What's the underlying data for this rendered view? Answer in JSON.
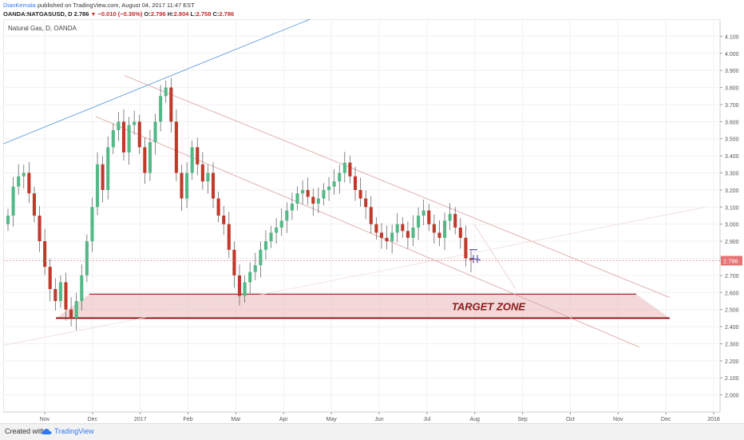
{
  "header": {
    "author": "DianKemala",
    "published_text": " published on TradingView.com, August 04, 2017 11:47 EST",
    "symbol": "OANDA:NATGASUSD, D",
    "last": "2.786",
    "change": "−0.010 (−0.36%)",
    "ohlc": {
      "o_label": "O:",
      "o": "2.796",
      "h_label": "H:",
      "h": "2.804",
      "l_label": "L:",
      "l": "2.758",
      "c_label": "C:",
      "c": "2.786"
    }
  },
  "chart_data": {
    "type": "candlestick",
    "title": "Natural Gas, D, OANDA",
    "ylim": [
      1.9,
      4.2
    ],
    "y_ticks": [
      "4.100",
      "4.000",
      "3.900",
      "3.800",
      "3.700",
      "3.600",
      "3.500",
      "3.400",
      "3.300",
      "3.200",
      "3.100",
      "3.000",
      "2.900",
      "2.800",
      "2.700",
      "2.600",
      "2.500",
      "2.400",
      "2.300",
      "2.200",
      "2.100",
      "2.000"
    ],
    "x_ticks": [
      "Nov",
      "Dec",
      "2017",
      "Feb",
      "Mar",
      "Apr",
      "May",
      "Jun",
      "Jul",
      "Aug",
      "Sep",
      "Oct",
      "Nov",
      "Dec",
      "2018"
    ],
    "last_price_label": "2.786",
    "last_price_color": "#e57373",
    "up_color": "#53b987",
    "down_color": "#c0392b",
    "target_zone": {
      "label": "TARGET ZONE",
      "top": 2.59,
      "bottom": 2.45
    },
    "candles_close": [
      3.05,
      3.22,
      3.28,
      3.3,
      3.18,
      3.05,
      2.9,
      2.75,
      2.62,
      2.55,
      2.66,
      2.5,
      2.45,
      2.55,
      2.7,
      2.9,
      3.1,
      3.35,
      3.2,
      3.45,
      3.55,
      3.6,
      3.42,
      3.58,
      3.6,
      3.45,
      3.3,
      3.48,
      3.6,
      3.75,
      3.8,
      3.6,
      3.3,
      3.15,
      3.3,
      3.45,
      3.35,
      3.25,
      3.3,
      3.15,
      3.05,
      3.0,
      2.85,
      2.7,
      2.58,
      2.66,
      2.72,
      2.76,
      2.85,
      2.9,
      2.95,
      2.98,
      3.02,
      3.08,
      3.12,
      3.18,
      3.2,
      3.16,
      3.12,
      3.15,
      3.2,
      3.22,
      3.25,
      3.3,
      3.36,
      3.28,
      3.2,
      3.15,
      3.1,
      3.0,
      2.95,
      2.92,
      2.9,
      2.95,
      3.0,
      2.96,
      2.92,
      2.98,
      3.05,
      3.08,
      3.0,
      2.95,
      2.92,
      3.02,
      3.06,
      2.98,
      2.92,
      2.8,
      2.79
    ]
  },
  "footer": {
    "created": "Created with",
    "brand": "TradingView"
  }
}
